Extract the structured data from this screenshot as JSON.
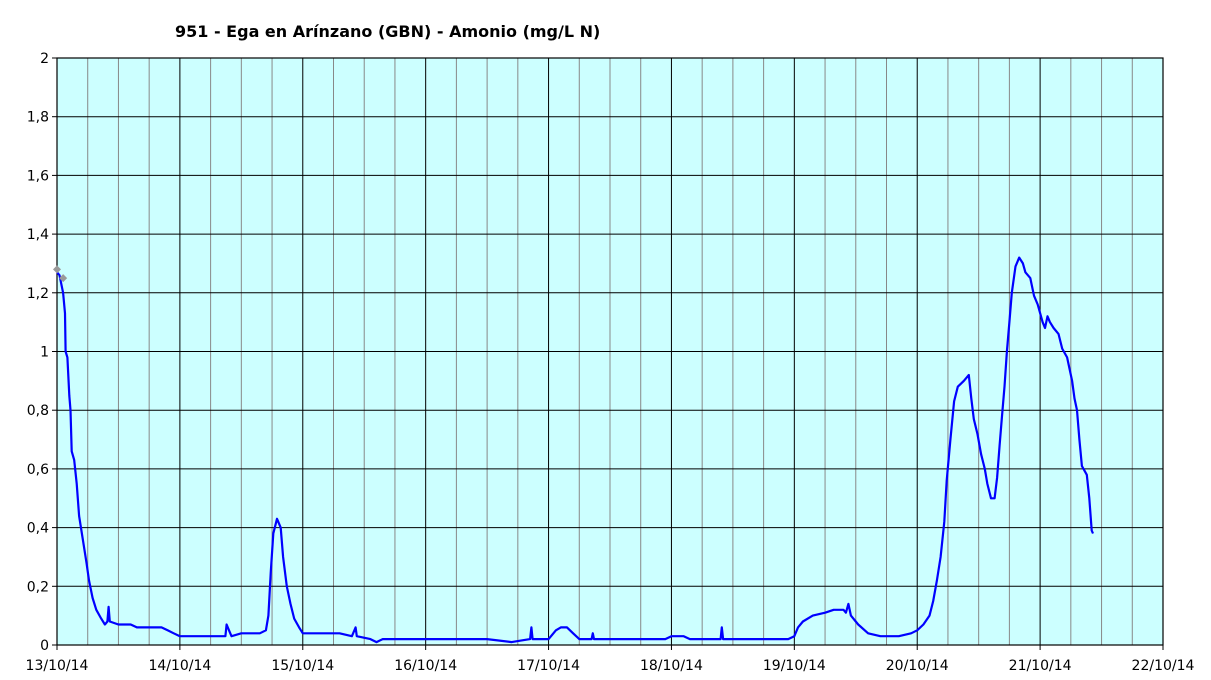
{
  "chart_data": {
    "type": "line",
    "title": "951 - Ega en Arínzano (GBN) - Amonio (mg/L N)",
    "xlabel": "",
    "ylabel": "",
    "x_tick_labels": [
      "13/10/14",
      "14/10/14",
      "15/10/14",
      "16/10/14",
      "17/10/14",
      "18/10/14",
      "19/10/14",
      "20/10/14",
      "21/10/14",
      "22/10/14"
    ],
    "y_tick_labels": [
      "0",
      "0,2",
      "0,4",
      "0,6",
      "0,8",
      "1",
      "1,2",
      "1,4",
      "1,6",
      "1,8",
      "2"
    ],
    "xlim": [
      0,
      9
    ],
    "ylim": [
      0,
      2
    ],
    "grid": true,
    "plot_background": "#ccffff",
    "series": [
      {
        "color": "#0000ff",
        "x_unit": "days since 13/10/14",
        "points": [
          [
            0.0,
            1.27
          ],
          [
            0.02,
            1.26
          ],
          [
            0.05,
            1.2
          ],
          [
            0.065,
            1.13
          ],
          [
            0.07,
            1.0
          ],
          [
            0.085,
            0.98
          ],
          [
            0.1,
            0.85
          ],
          [
            0.11,
            0.8
          ],
          [
            0.12,
            0.66
          ],
          [
            0.14,
            0.63
          ],
          [
            0.16,
            0.55
          ],
          [
            0.18,
            0.44
          ],
          [
            0.21,
            0.36
          ],
          [
            0.24,
            0.28
          ],
          [
            0.26,
            0.22
          ],
          [
            0.29,
            0.16
          ],
          [
            0.32,
            0.12
          ],
          [
            0.36,
            0.09
          ],
          [
            0.39,
            0.07
          ],
          [
            0.41,
            0.08
          ],
          [
            0.42,
            0.13
          ],
          [
            0.43,
            0.08
          ],
          [
            0.5,
            0.07
          ],
          [
            0.6,
            0.07
          ],
          [
            0.65,
            0.06
          ],
          [
            0.75,
            0.06
          ],
          [
            0.85,
            0.06
          ],
          [
            0.9,
            0.05
          ],
          [
            0.95,
            0.04
          ],
          [
            1.0,
            0.03
          ],
          [
            1.2,
            0.03
          ],
          [
            1.37,
            0.03
          ],
          [
            1.38,
            0.07
          ],
          [
            1.4,
            0.05
          ],
          [
            1.42,
            0.03
          ],
          [
            1.5,
            0.04
          ],
          [
            1.6,
            0.04
          ],
          [
            1.65,
            0.04
          ],
          [
            1.7,
            0.05
          ],
          [
            1.72,
            0.1
          ],
          [
            1.74,
            0.25
          ],
          [
            1.76,
            0.38
          ],
          [
            1.79,
            0.43
          ],
          [
            1.82,
            0.4
          ],
          [
            1.84,
            0.3
          ],
          [
            1.87,
            0.2
          ],
          [
            1.9,
            0.14
          ],
          [
            1.93,
            0.09
          ],
          [
            1.97,
            0.06
          ],
          [
            2.0,
            0.04
          ],
          [
            2.3,
            0.04
          ],
          [
            2.4,
            0.03
          ],
          [
            2.43,
            0.06
          ],
          [
            2.44,
            0.03
          ],
          [
            2.55,
            0.02
          ],
          [
            2.6,
            0.01
          ],
          [
            2.65,
            0.02
          ],
          [
            3.0,
            0.02
          ],
          [
            3.2,
            0.02
          ],
          [
            3.3,
            0.02
          ],
          [
            3.5,
            0.02
          ],
          [
            3.7,
            0.01
          ],
          [
            3.85,
            0.02
          ],
          [
            3.86,
            0.06
          ],
          [
            3.87,
            0.02
          ],
          [
            4.0,
            0.02
          ],
          [
            4.06,
            0.05
          ],
          [
            4.1,
            0.06
          ],
          [
            4.15,
            0.06
          ],
          [
            4.2,
            0.04
          ],
          [
            4.25,
            0.02
          ],
          [
            4.35,
            0.02
          ],
          [
            4.36,
            0.04
          ],
          [
            4.37,
            0.02
          ],
          [
            4.7,
            0.02
          ],
          [
            4.95,
            0.02
          ],
          [
            5.0,
            0.03
          ],
          [
            5.1,
            0.03
          ],
          [
            5.15,
            0.02
          ],
          [
            5.3,
            0.02
          ],
          [
            5.4,
            0.02
          ],
          [
            5.41,
            0.06
          ],
          [
            5.42,
            0.02
          ],
          [
            5.8,
            0.02
          ],
          [
            5.95,
            0.02
          ],
          [
            6.0,
            0.03
          ],
          [
            6.03,
            0.06
          ],
          [
            6.07,
            0.08
          ],
          [
            6.15,
            0.1
          ],
          [
            6.25,
            0.11
          ],
          [
            6.32,
            0.12
          ],
          [
            6.4,
            0.12
          ],
          [
            6.42,
            0.11
          ],
          [
            6.44,
            0.14
          ],
          [
            6.46,
            0.1
          ],
          [
            6.52,
            0.07
          ],
          [
            6.6,
            0.04
          ],
          [
            6.7,
            0.03
          ],
          [
            6.8,
            0.03
          ],
          [
            6.85,
            0.03
          ],
          [
            6.95,
            0.04
          ],
          [
            7.0,
            0.05
          ],
          [
            7.05,
            0.07
          ],
          [
            7.1,
            0.1
          ],
          [
            7.13,
            0.15
          ],
          [
            7.16,
            0.22
          ],
          [
            7.19,
            0.3
          ],
          [
            7.22,
            0.42
          ],
          [
            7.24,
            0.56
          ],
          [
            7.27,
            0.7
          ],
          [
            7.3,
            0.83
          ],
          [
            7.33,
            0.88
          ],
          [
            7.38,
            0.9
          ],
          [
            7.42,
            0.92
          ],
          [
            7.44,
            0.84
          ],
          [
            7.46,
            0.77
          ],
          [
            7.49,
            0.72
          ],
          [
            7.52,
            0.65
          ],
          [
            7.55,
            0.6
          ],
          [
            7.57,
            0.55
          ],
          [
            7.6,
            0.5
          ],
          [
            7.63,
            0.5
          ],
          [
            7.65,
            0.57
          ],
          [
            7.67,
            0.68
          ],
          [
            7.69,
            0.78
          ],
          [
            7.71,
            0.88
          ],
          [
            7.73,
            1.0
          ],
          [
            7.75,
            1.1
          ],
          [
            7.77,
            1.2
          ],
          [
            7.8,
            1.29
          ],
          [
            7.83,
            1.32
          ],
          [
            7.86,
            1.3
          ],
          [
            7.88,
            1.27
          ],
          [
            7.92,
            1.25
          ],
          [
            7.95,
            1.19
          ],
          [
            7.98,
            1.16
          ],
          [
            8.02,
            1.1
          ],
          [
            8.04,
            1.08
          ],
          [
            8.06,
            1.12
          ],
          [
            8.08,
            1.1
          ],
          [
            8.11,
            1.08
          ],
          [
            8.15,
            1.06
          ],
          [
            8.18,
            1.01
          ],
          [
            8.22,
            0.98
          ],
          [
            8.24,
            0.94
          ],
          [
            8.26,
            0.9
          ],
          [
            8.28,
            0.84
          ],
          [
            8.3,
            0.8
          ],
          [
            8.32,
            0.7
          ],
          [
            8.34,
            0.61
          ],
          [
            8.38,
            0.58
          ],
          [
            8.4,
            0.5
          ],
          [
            8.42,
            0.39
          ],
          [
            8.43,
            0.38
          ]
        ]
      }
    ],
    "gray_markers": [
      {
        "color": "#999999",
        "x": 0.0,
        "y": 1.28
      },
      {
        "color": "#999999",
        "x": 0.05,
        "y": 1.25
      }
    ]
  }
}
